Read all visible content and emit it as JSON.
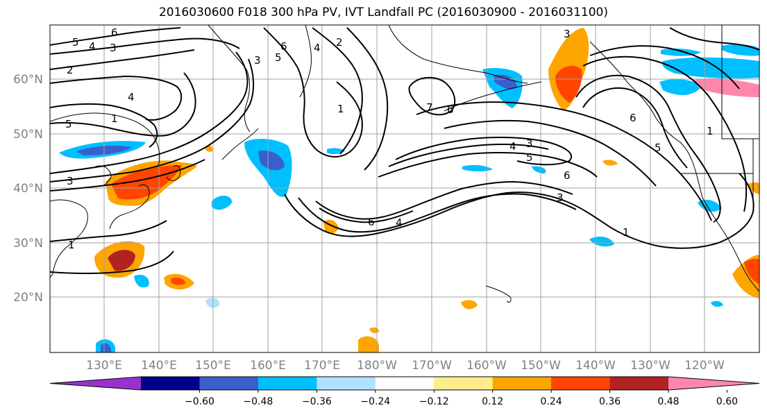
{
  "title": "2016030600 F018 300 hPa PV, IVT Landfall PC (2016030900 - 2016031100)",
  "lat_labels": [
    "60°N",
    "50°N",
    "40°N",
    "30°N",
    "20°N"
  ],
  "lon_labels": [
    "130°E",
    "140°E",
    "150°E",
    "160°E",
    "170°E",
    "180°W",
    "170°W",
    "160°W",
    "150°W",
    "140°W",
    "130°W",
    "120°W"
  ],
  "colorbar": {
    "colors": [
      "#9932cc",
      "#00008b",
      "#3a5fcd",
      "#00bfff",
      "#b0e2ff",
      "#ffffff",
      "#ffec8b",
      "#ffa500",
      "#ff4500",
      "#b22222",
      "#ff88aa"
    ],
    "tick_labels": [
      "−0.60",
      "−0.48",
      "−0.36",
      "−0.24",
      "−0.12",
      "0.12",
      "0.24",
      "0.36",
      "0.48",
      "0.60"
    ]
  },
  "contour_labels": [
    "6",
    "5",
    "4",
    "3",
    "2",
    "4",
    "5",
    "3",
    "1",
    "5",
    "6",
    "3",
    "4",
    "2",
    "1",
    "7",
    "6",
    "4",
    "3",
    "5",
    "6",
    "3",
    "1",
    "6",
    "4",
    "1",
    "3",
    "6",
    "5",
    "1"
  ]
}
